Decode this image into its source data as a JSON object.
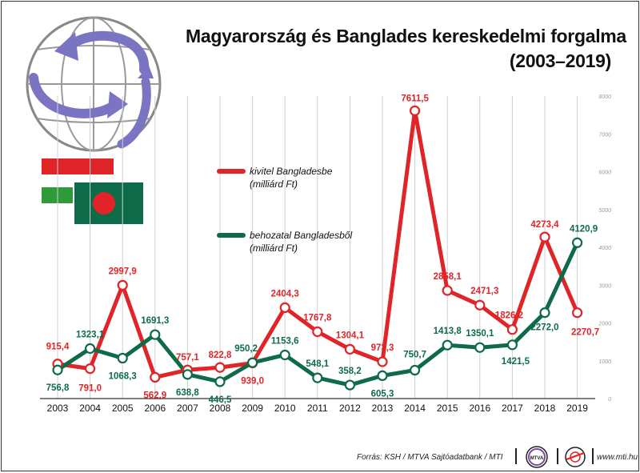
{
  "header": {
    "title_line1": "Magyarország és Banglades kereskedelmi forgalma",
    "title_line2": "(2003–2019)"
  },
  "chart_data": {
    "type": "line",
    "title": "Magyarország és Banglades kereskedelmi forgalma (2003–2019)",
    "x": [
      "2003",
      "2004",
      "2005",
      "2006",
      "2007",
      "2008",
      "2009",
      "2010",
      "2011",
      "2012",
      "2013",
      "2014",
      "2015",
      "2016",
      "2017",
      "2018",
      "2019"
    ],
    "ylim": [
      0,
      8000
    ],
    "yticks": [
      "0",
      "1000",
      "2000",
      "3000",
      "4000",
      "5000",
      "6000",
      "7000",
      "8000"
    ],
    "y_axis_side": "right",
    "grid": "vertical",
    "series": [
      {
        "name": "kivitel Bangladesbe",
        "unit": "(milliárd Ft)",
        "color": "#e02428",
        "values": [
          915.4,
          791.0,
          2997.9,
          562.9,
          757.1,
          822.8,
          939.0,
          2404.3,
          1767.8,
          1304.1,
          973.3,
          7611.5,
          2858.1,
          2471.3,
          1826.2,
          4273.4,
          2270.7
        ],
        "labels": [
          "915,4",
          "791,0",
          "2997,9",
          "562,9",
          "757,1",
          "822,8",
          "939,0",
          "2404,3",
          "1767,8",
          "1304,1",
          "973,3",
          "7611,5",
          "2858,1",
          "2471,3",
          "1826,2",
          "4273,4",
          "2270,7"
        ]
      },
      {
        "name": "behozatal Bangladesből",
        "unit": "(milliárd Ft)",
        "color": "#0e6b4a",
        "values": [
          756.8,
          1323.1,
          1068.3,
          1691.3,
          638.8,
          446.5,
          950.2,
          1153.6,
          548.1,
          358.2,
          605.3,
          750.7,
          1413.8,
          1350.1,
          1421.5,
          2272.0,
          4120.9
        ],
        "labels": [
          "756,8",
          "1323,1",
          "1068,3",
          "1691,3",
          "638,8",
          "446,5",
          "950,2",
          "1153,6",
          "548,1",
          "358,2",
          "605,3",
          "750,7",
          "1413,8",
          "1350,1",
          "1421,5",
          "2272,0",
          "4120,9"
        ]
      }
    ],
    "legend_placement": "center-left"
  },
  "footer": {
    "source": "Forrás: KSH / MTVA Sajtóadatbank / MTI",
    "logo1": "MTVA",
    "url": "www.mti.hu"
  },
  "decor": {
    "globe_icon": "globe-with-arrows-icon",
    "flag_hu": "hungary-flag-icon",
    "flag_bd": "bangladesh-flag-icon",
    "colors": {
      "hu_red": "#e02428",
      "hu_green": "#2e9a3a",
      "bd_green": "#0e6b4a",
      "bd_red": "#e02428",
      "globe_arrow": "#7b74c2"
    }
  }
}
